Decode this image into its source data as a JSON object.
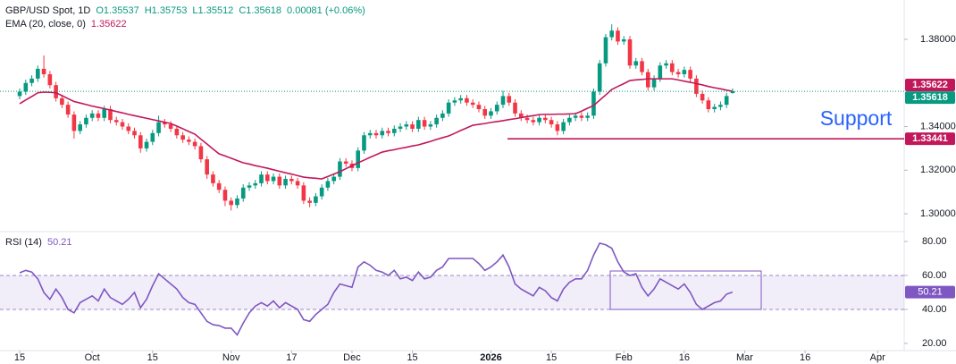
{
  "chart_data": [
    {
      "type": "candlestick",
      "title": "GBP/USD Spot, 1D",
      "legend_texts": [
        "O1.35537",
        "H1.35753",
        "L1.35512",
        "C1.35618",
        "0.00081 (+0.06%)"
      ],
      "up_color": "#089981",
      "down_color": "#f23645",
      "ohlc": [
        [
          1.354,
          1.3575,
          1.3525,
          1.356
        ],
        [
          1.356,
          1.3615,
          1.3545,
          1.36
        ],
        [
          1.36,
          1.3635,
          1.3585,
          1.362
        ],
        [
          1.362,
          1.368,
          1.3605,
          1.3665
        ],
        [
          1.3665,
          1.3726,
          1.3625,
          1.364
        ],
        [
          1.364,
          1.3655,
          1.3575,
          1.359
        ],
        [
          1.359,
          1.3605,
          1.3515,
          1.353
        ],
        [
          1.353,
          1.3545,
          1.3485,
          1.35
        ],
        [
          1.35,
          1.3515,
          1.344,
          1.3455
        ],
        [
          1.3455,
          1.347,
          1.3345,
          1.338
        ],
        [
          1.338,
          1.3425,
          1.3365,
          1.341
        ],
        [
          1.341,
          1.3455,
          1.3395,
          1.344
        ],
        [
          1.344,
          1.3475,
          1.3425,
          1.346
        ],
        [
          1.346,
          1.3475,
          1.3425,
          1.344
        ],
        [
          1.344,
          1.3495,
          1.3425,
          1.348
        ],
        [
          1.348,
          1.3495,
          1.3415,
          1.343
        ],
        [
          1.343,
          1.3445,
          1.3405,
          1.342
        ],
        [
          1.342,
          1.3435,
          1.3385,
          1.34
        ],
        [
          1.34,
          1.3415,
          1.3365,
          1.338
        ],
        [
          1.338,
          1.3395,
          1.3345,
          1.336
        ],
        [
          1.336,
          1.3375,
          1.328,
          1.33
        ],
        [
          1.33,
          1.3345,
          1.3285,
          1.333
        ],
        [
          1.333,
          1.3385,
          1.3315,
          1.337
        ],
        [
          1.337,
          1.345,
          1.3355,
          1.342
        ],
        [
          1.342,
          1.3435,
          1.3395,
          1.341
        ],
        [
          1.341,
          1.3425,
          1.3375,
          1.339
        ],
        [
          1.339,
          1.3405,
          1.3345,
          1.336
        ],
        [
          1.336,
          1.3375,
          1.3325,
          1.334
        ],
        [
          1.334,
          1.3355,
          1.3315,
          1.333
        ],
        [
          1.333,
          1.3345,
          1.3295,
          1.331
        ],
        [
          1.331,
          1.3325,
          1.3235,
          1.325
        ],
        [
          1.325,
          1.3265,
          1.316,
          1.318
        ],
        [
          1.318,
          1.3195,
          1.3125,
          1.314
        ],
        [
          1.314,
          1.3155,
          1.3095,
          1.311
        ],
        [
          1.311,
          1.3125,
          1.3035,
          1.306
        ],
        [
          1.306,
          1.3075,
          1.3015,
          1.304
        ],
        [
          1.304,
          1.3085,
          1.3025,
          1.307
        ],
        [
          1.307,
          1.3135,
          1.3055,
          1.312
        ],
        [
          1.312,
          1.3145,
          1.3105,
          1.313
        ],
        [
          1.313,
          1.3155,
          1.3115,
          1.314
        ],
        [
          1.314,
          1.3195,
          1.3125,
          1.318
        ],
        [
          1.318,
          1.3195,
          1.3135,
          1.315
        ],
        [
          1.315,
          1.3185,
          1.3135,
          1.317
        ],
        [
          1.317,
          1.3185,
          1.3115,
          1.313
        ],
        [
          1.313,
          1.3175,
          1.3115,
          1.316
        ],
        [
          1.316,
          1.3175,
          1.3135,
          1.315
        ],
        [
          1.315,
          1.3165,
          1.3115,
          1.313
        ],
        [
          1.313,
          1.3145,
          1.3045,
          1.306
        ],
        [
          1.306,
          1.3075,
          1.303,
          1.305
        ],
        [
          1.305,
          1.3095,
          1.3035,
          1.308
        ],
        [
          1.308,
          1.3135,
          1.3065,
          1.312
        ],
        [
          1.312,
          1.3165,
          1.3105,
          1.315
        ],
        [
          1.315,
          1.3185,
          1.3135,
          1.317
        ],
        [
          1.317,
          1.3255,
          1.3155,
          1.324
        ],
        [
          1.324,
          1.3255,
          1.3215,
          1.323
        ],
        [
          1.323,
          1.3245,
          1.3195,
          1.321
        ],
        [
          1.321,
          1.3305,
          1.3195,
          1.329
        ],
        [
          1.329,
          1.3375,
          1.3275,
          1.336
        ],
        [
          1.336,
          1.3385,
          1.3345,
          1.337
        ],
        [
          1.337,
          1.3385,
          1.3345,
          1.336
        ],
        [
          1.336,
          1.3395,
          1.3345,
          1.338
        ],
        [
          1.338,
          1.3395,
          1.3355,
          1.337
        ],
        [
          1.337,
          1.3405,
          1.3355,
          1.339
        ],
        [
          1.339,
          1.3415,
          1.3375,
          1.34
        ],
        [
          1.34,
          1.3425,
          1.3385,
          1.341
        ],
        [
          1.341,
          1.3425,
          1.3375,
          1.339
        ],
        [
          1.339,
          1.3445,
          1.3375,
          1.343
        ],
        [
          1.343,
          1.3445,
          1.3385,
          1.34
        ],
        [
          1.34,
          1.3425,
          1.3385,
          1.341
        ],
        [
          1.341,
          1.3455,
          1.3395,
          1.344
        ],
        [
          1.344,
          1.3475,
          1.3425,
          1.346
        ],
        [
          1.346,
          1.3525,
          1.3445,
          1.351
        ],
        [
          1.351,
          1.3535,
          1.3495,
          1.352
        ],
        [
          1.352,
          1.3545,
          1.3505,
          1.353
        ],
        [
          1.353,
          1.3545,
          1.3495,
          1.351
        ],
        [
          1.351,
          1.3525,
          1.3485,
          1.35
        ],
        [
          1.35,
          1.3515,
          1.3465,
          1.348
        ],
        [
          1.348,
          1.3495,
          1.3435,
          1.345
        ],
        [
          1.345,
          1.3485,
          1.3435,
          1.347
        ],
        [
          1.347,
          1.3515,
          1.3455,
          1.35
        ],
        [
          1.35,
          1.3565,
          1.3485,
          1.354
        ],
        [
          1.354,
          1.3555,
          1.3495,
          1.351
        ],
        [
          1.351,
          1.3525,
          1.3445,
          1.346
        ],
        [
          1.346,
          1.3475,
          1.3425,
          1.344
        ],
        [
          1.344,
          1.3455,
          1.3415,
          1.343
        ],
        [
          1.343,
          1.3445,
          1.3405,
          1.342
        ],
        [
          1.342,
          1.3455,
          1.3405,
          1.344
        ],
        [
          1.344,
          1.3455,
          1.3415,
          1.343
        ],
        [
          1.343,
          1.3445,
          1.3395,
          1.341
        ],
        [
          1.341,
          1.3425,
          1.336,
          1.338
        ],
        [
          1.338,
          1.3435,
          1.3365,
          1.342
        ],
        [
          1.342,
          1.3455,
          1.3405,
          1.344
        ],
        [
          1.344,
          1.3465,
          1.3425,
          1.345
        ],
        [
          1.345,
          1.3465,
          1.3425,
          1.344
        ],
        [
          1.344,
          1.3465,
          1.3425,
          1.345
        ],
        [
          1.345,
          1.3575,
          1.3435,
          1.356
        ],
        [
          1.356,
          1.3705,
          1.3545,
          1.369
        ],
        [
          1.369,
          1.3825,
          1.3675,
          1.381
        ],
        [
          1.381,
          1.3869,
          1.3795,
          1.384
        ],
        [
          1.384,
          1.3855,
          1.3775,
          1.379
        ],
        [
          1.379,
          1.3815,
          1.3775,
          1.38
        ],
        [
          1.38,
          1.3815,
          1.3665,
          1.368
        ],
        [
          1.368,
          1.3715,
          1.3665,
          1.37
        ],
        [
          1.37,
          1.3715,
          1.3635,
          1.365
        ],
        [
          1.365,
          1.3665,
          1.3565,
          1.358
        ],
        [
          1.358,
          1.3635,
          1.3565,
          1.362
        ],
        [
          1.362,
          1.3695,
          1.3605,
          1.368
        ],
        [
          1.368,
          1.3705,
          1.3665,
          1.369
        ],
        [
          1.369,
          1.3705,
          1.3635,
          1.365
        ],
        [
          1.365,
          1.3665,
          1.3625,
          1.364
        ],
        [
          1.364,
          1.3675,
          1.3625,
          1.366
        ],
        [
          1.366,
          1.3675,
          1.3605,
          1.362
        ],
        [
          1.362,
          1.3635,
          1.3535,
          1.355
        ],
        [
          1.355,
          1.3565,
          1.3505,
          1.352
        ],
        [
          1.352,
          1.3535,
          1.3465,
          1.348
        ],
        [
          1.348,
          1.3505,
          1.3465,
          1.349
        ],
        [
          1.349,
          1.3515,
          1.3475,
          1.35
        ],
        [
          1.35,
          1.3555,
          1.3485,
          1.354
        ],
        [
          1.35537,
          1.35753,
          1.35512,
          1.35618
        ]
      ],
      "series": [
        {
          "name": "EMA (20, close, 0)",
          "last": "1.35622",
          "color": "#c2185b",
          "values": [
            1.3505,
            1.3522,
            1.3538,
            1.3555,
            1.3558,
            1.3557,
            1.3555,
            1.3542,
            1.3528,
            1.3515,
            1.3508,
            1.3501,
            1.3494,
            1.3488,
            1.3482,
            1.3476,
            1.3469,
            1.3463,
            1.3456,
            1.345,
            1.3444,
            1.3438,
            1.3432,
            1.3426,
            1.342,
            1.3414,
            1.3402,
            1.339,
            1.3377,
            1.3365,
            1.3342,
            1.332,
            1.3297,
            1.3275,
            1.3265,
            1.3255,
            1.3244,
            1.3234,
            1.3228,
            1.3221,
            1.3215,
            1.3209,
            1.3202,
            1.3195,
            1.3188,
            1.3182,
            1.3175,
            1.3168,
            1.3165,
            1.3163,
            1.316,
            1.3171,
            1.3182,
            1.3193,
            1.3207,
            1.322,
            1.3234,
            1.3246,
            1.3259,
            1.3271,
            1.3283,
            1.3289,
            1.3294,
            1.33,
            1.3305,
            1.3311,
            1.3316,
            1.3324,
            1.3332,
            1.3341,
            1.3349,
            1.3357,
            1.3369,
            1.3382,
            1.3394,
            1.3406,
            1.341,
            1.3414,
            1.3419,
            1.3423,
            1.3427,
            1.3432,
            1.3436,
            1.3441,
            1.3446,
            1.345,
            1.3455,
            1.3456,
            1.3456,
            1.3457,
            1.3457,
            1.3458,
            1.3459,
            1.3471,
            1.3484,
            1.3496,
            1.3521,
            1.3545,
            1.357,
            1.3584,
            1.3597,
            1.3611,
            1.3614,
            1.3616,
            1.3619,
            1.3619,
            1.3619,
            1.3619,
            1.3619,
            1.3614,
            1.3608,
            1.3603,
            1.3597,
            1.3591,
            1.3584,
            1.3578,
            1.3573,
            1.3567,
            1.35622
          ]
        }
      ],
      "price_labels": [
        {
          "value": 1.35622,
          "label": "1.35622",
          "color": "#c2185b"
        },
        {
          "value": 1.35618,
          "label": "1.35618",
          "color": "#089981"
        },
        {
          "value": 1.33441,
          "label": "1.33441",
          "color": "#c2185b"
        }
      ],
      "annotation": "Support",
      "annotation_color": "#2962ff",
      "xlim": [
        -3.26,
        146.4
      ],
      "xticks": [
        {
          "value": 0,
          "label": "15"
        },
        {
          "value": 12,
          "label": "Oct"
        },
        {
          "value": 22,
          "label": "15"
        },
        {
          "value": 35,
          "label": "Nov"
        },
        {
          "value": 45,
          "label": "17"
        },
        {
          "value": 55,
          "label": "Dec"
        },
        {
          "value": 65,
          "label": "15"
        },
        {
          "value": 78,
          "label": "2026"
        },
        {
          "value": 88,
          "label": "15"
        },
        {
          "value": 100,
          "label": "Feb"
        },
        {
          "value": 110,
          "label": "16"
        },
        {
          "value": 120,
          "label": "Mar"
        },
        {
          "value": 130,
          "label": "16"
        },
        {
          "value": 142,
          "label": "Apr"
        }
      ],
      "ylim": [
        1.29222,
        1.39805
      ],
      "yticks": [
        {
          "value": 1.3,
          "label": "1.30000"
        },
        {
          "value": 1.32,
          "label": "1.32000"
        },
        {
          "value": 1.34,
          "label": "1.34000"
        },
        {
          "value": 1.38,
          "label": "1.38000"
        }
      ]
    },
    {
      "type": "line",
      "title": "RSI (14)",
      "series": [
        {
          "name": "RSI (14)",
          "last": "50.21",
          "color": "#7e57c2",
          "values": [
            61.6,
            63,
            62,
            58,
            50,
            46,
            52,
            47,
            40,
            38,
            44,
            46,
            48,
            45,
            52,
            47,
            45,
            43,
            46,
            50,
            41,
            46,
            54,
            61,
            58,
            55,
            52,
            47,
            44,
            43,
            38,
            33,
            31,
            30.5,
            29,
            29,
            25,
            32,
            38,
            42,
            44,
            42,
            45,
            41,
            44,
            42,
            40,
            34,
            33,
            37,
            40,
            43,
            50,
            55,
            54,
            53,
            65,
            68,
            66,
            63,
            62,
            60,
            63,
            58,
            59,
            57,
            62,
            58,
            59,
            63,
            65,
            70,
            70,
            70,
            70,
            70,
            67,
            63,
            65,
            68,
            72,
            65,
            55,
            52,
            50,
            48,
            53,
            51,
            47,
            45,
            52,
            56,
            58,
            58,
            63,
            72,
            79,
            78,
            76,
            68,
            62,
            60,
            61,
            53,
            48,
            52,
            58,
            56,
            54,
            52,
            55,
            50,
            43,
            40,
            42,
            44,
            45,
            49,
            50.21
          ]
        }
      ],
      "band": [
        40,
        60
      ],
      "ylim": [
        15.79,
        85.26
      ],
      "yticks": [
        {
          "value": 80,
          "label": "80.00"
        },
        {
          "value": 60,
          "label": "60.00"
        },
        {
          "value": 40,
          "label": "40.00"
        },
        {
          "value": 20,
          "label": "20.00"
        }
      ]
    }
  ]
}
